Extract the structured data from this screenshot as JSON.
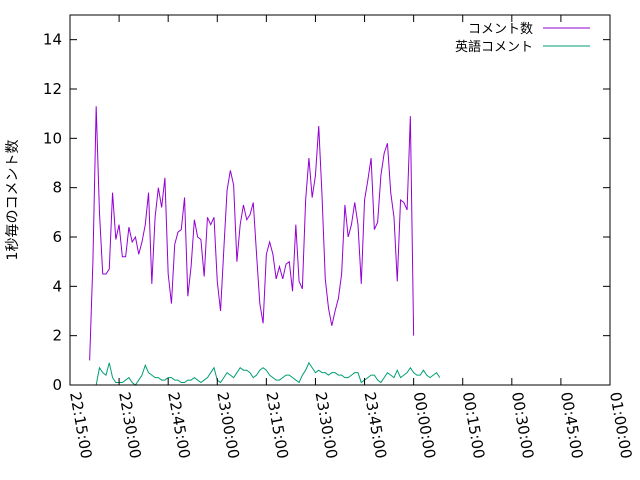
{
  "chart_data": {
    "type": "line",
    "title": "",
    "xlabel": "",
    "ylabel": "1秒毎のコメント数",
    "xlim": [
      "22:15:00",
      "01:00:00"
    ],
    "ylim": [
      0,
      15
    ],
    "x_ticks": [
      "22:15:00",
      "22:30:00",
      "22:45:00",
      "23:00:00",
      "23:15:00",
      "23:30:00",
      "23:45:00",
      "00:00:00",
      "00:15:00",
      "00:30:00",
      "00:45:00",
      "01:00:00"
    ],
    "y_ticks": [
      0,
      2,
      4,
      6,
      8,
      10,
      12,
      14
    ],
    "grid": false,
    "legend_position": "top-right",
    "sample_interval_minutes": 1,
    "series": [
      {
        "name": "コメント数",
        "color": "#9400d3",
        "start": "22:21:00",
        "values": [
          1.0,
          5.0,
          11.3,
          7.0,
          4.5,
          4.5,
          4.7,
          7.8,
          5.9,
          6.5,
          5.2,
          5.2,
          6.4,
          5.8,
          6.0,
          5.3,
          5.8,
          6.5,
          7.8,
          4.1,
          6.8,
          8.0,
          7.2,
          8.4,
          4.5,
          3.3,
          5.7,
          6.2,
          6.3,
          7.6,
          3.6,
          4.8,
          6.7,
          6.0,
          5.9,
          4.4,
          6.8,
          6.5,
          6.8,
          4.2,
          3.0,
          5.5,
          7.9,
          8.7,
          8.1,
          5.0,
          6.5,
          7.3,
          6.7,
          6.9,
          7.4,
          5.3,
          3.3,
          2.5,
          5.3,
          5.8,
          5.3,
          4.3,
          4.8,
          4.3,
          4.9,
          5.0,
          3.8,
          6.5,
          4.2,
          3.9,
          7.5,
          9.2,
          7.6,
          8.5,
          10.5,
          7.7,
          4.3,
          3.1,
          2.4,
          3.0,
          3.5,
          4.5,
          7.3,
          6.0,
          6.5,
          7.4,
          6.5,
          4.1,
          7.5,
          8.3,
          9.2,
          6.3,
          6.6,
          8.5,
          9.4,
          9.8,
          7.8,
          6.8,
          4.2,
          7.5,
          7.4,
          7.1,
          10.9,
          2.0
        ]
      },
      {
        "name": "英語コメント",
        "color": "#009e73",
        "start": "22:22:00",
        "values": [
          0.0,
          0.0,
          0.7,
          0.5,
          0.4,
          0.9,
          0.3,
          0.1,
          0.1,
          0.1,
          0.2,
          0.3,
          0.1,
          0.0,
          0.2,
          0.4,
          0.8,
          0.5,
          0.4,
          0.3,
          0.3,
          0.2,
          0.2,
          0.3,
          0.3,
          0.2,
          0.2,
          0.1,
          0.1,
          0.2,
          0.2,
          0.3,
          0.2,
          0.1,
          0.2,
          0.3,
          0.5,
          0.7,
          0.2,
          0.1,
          0.3,
          0.5,
          0.4,
          0.3,
          0.5,
          0.7,
          0.6,
          0.6,
          0.5,
          0.3,
          0.4,
          0.6,
          0.7,
          0.6,
          0.4,
          0.3,
          0.2,
          0.2,
          0.3,
          0.4,
          0.4,
          0.3,
          0.2,
          0.1,
          0.4,
          0.6,
          0.9,
          0.7,
          0.5,
          0.6,
          0.5,
          0.5,
          0.4,
          0.5,
          0.5,
          0.4,
          0.4,
          0.3,
          0.3,
          0.4,
          0.5,
          0.5,
          0.1,
          0.2,
          0.3,
          0.4,
          0.4,
          0.2,
          0.1,
          0.3,
          0.5,
          0.4,
          0.3,
          0.6,
          0.3,
          0.4,
          0.5,
          0.7,
          0.5,
          0.4,
          0.4,
          0.6,
          0.4,
          0.3,
          0.4,
          0.5,
          0.3
        ]
      }
    ]
  }
}
